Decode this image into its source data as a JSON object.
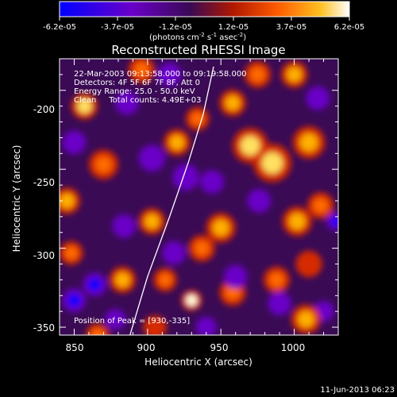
{
  "figure": {
    "title": "Reconstructed RHESSI Image",
    "footer_date": "11-Jun-2013 06:23"
  },
  "colorbar": {
    "tick_labels": [
      "-6.2e-05",
      "-3.7e-05",
      "-1.2e-05",
      "1.2e-05",
      "3.7e-05",
      "6.2e-05"
    ],
    "unit_label": "(photons cm",
    "unit_exp1": "-2",
    "unit_mid": " s",
    "unit_exp2": "-1",
    "unit_end": " asec",
    "unit_exp3": "-2",
    "unit_close": ")",
    "range": [
      -6.2e-05,
      6.2e-05
    ]
  },
  "annotations": {
    "line1": "22-Mar-2003 09:13:58.000 to 09:19:58.000",
    "line2": "Detectors: 4F 5F 6F 7F 8F, Att 0",
    "line3": "Energy Range: 25.0 - 50.0 keV",
    "line4": "Clean     Total counts: 4.49E+03",
    "peak": "Position of Peak = [930,-335]"
  },
  "colors": {
    "background": "#000000",
    "limb": "#ffffff",
    "negative_max": "#0000ff",
    "negative_mid": "#6a00c8",
    "neutral": "#3a0a55",
    "positive_low": "#d62a00",
    "positive_mid": "#ffb000",
    "positive_max": "#ffffe0"
  },
  "chart_data": {
    "type": "heatmap",
    "title": "Reconstructed RHESSI Image",
    "xlabel": "Heliocentric X (arcsec)",
    "ylabel": "Heliocentric Y (arcsec)",
    "xlim": [
      840,
      1030
    ],
    "ylim": [
      -355,
      -180
    ],
    "x_ticks": [
      850,
      900,
      950,
      1000
    ],
    "x_tick_labels": [
      "850",
      "900",
      "950",
      "1000"
    ],
    "y_ticks": [
      -200,
      -250,
      -300,
      -350
    ],
    "y_tick_labels": [
      "-200",
      "-250",
      "-300",
      "-350"
    ],
    "value_range": [
      -6.2e-05,
      6.2e-05
    ],
    "peak_position": [
      930,
      -335
    ],
    "limb_curve": [
      [
        888,
        -355
      ],
      [
        900,
        -318
      ],
      [
        915,
        -280
      ],
      [
        928,
        -245
      ],
      [
        938,
        -215
      ],
      [
        945,
        -185
      ]
    ],
    "blobs": [
      {
        "x": 930,
        "y": -333,
        "v": 6.2e-05,
        "r": 7
      },
      {
        "x": 937,
        "y": -300,
        "v": 2.8e-05,
        "r": 9
      },
      {
        "x": 903,
        "y": -283,
        "v": 4e-05,
        "r": 9
      },
      {
        "x": 950,
        "y": -287,
        "v": 4.2e-05,
        "r": 10
      },
      {
        "x": 970,
        "y": -235,
        "v": 5.3e-05,
        "r": 12
      },
      {
        "x": 985,
        "y": -246,
        "v": 4.6e-05,
        "r": 13
      },
      {
        "x": 1010,
        "y": -233,
        "v": 3.6e-05,
        "r": 11
      },
      {
        "x": 1002,
        "y": -283,
        "v": 3.6e-05,
        "r": 10
      },
      {
        "x": 1018,
        "y": -273,
        "v": 3e-05,
        "r": 9
      },
      {
        "x": 1000,
        "y": -190,
        "v": 3.4e-05,
        "r": 9
      },
      {
        "x": 975,
        "y": -190,
        "v": 2.8e-05,
        "r": 9
      },
      {
        "x": 958,
        "y": -208,
        "v": 3.6e-05,
        "r": 9
      },
      {
        "x": 934,
        "y": -218,
        "v": 3e-05,
        "r": 8
      },
      {
        "x": 920,
        "y": -233,
        "v": 3.5e-05,
        "r": 9
      },
      {
        "x": 896,
        "y": -187,
        "v": 2.8e-05,
        "r": 9
      },
      {
        "x": 857,
        "y": -210,
        "v": 4.8e-05,
        "r": 9
      },
      {
        "x": 870,
        "y": -247,
        "v": 3e-05,
        "r": 10
      },
      {
        "x": 845,
        "y": -270,
        "v": 3.6e-05,
        "r": 9
      },
      {
        "x": 848,
        "y": -303,
        "v": 3e-05,
        "r": 8
      },
      {
        "x": 883,
        "y": -320,
        "v": 3.4e-05,
        "r": 9
      },
      {
        "x": 912,
        "y": -320,
        "v": 2.7e-05,
        "r": 8
      },
      {
        "x": 958,
        "y": -328,
        "v": 2.8e-05,
        "r": 9
      },
      {
        "x": 988,
        "y": -320,
        "v": 3e-05,
        "r": 9
      },
      {
        "x": 1008,
        "y": -345,
        "v": 3.2e-05,
        "r": 10
      },
      {
        "x": 1010,
        "y": -310,
        "v": 2.4e-05,
        "r": 9
      },
      {
        "x": 905,
        "y": -350,
        "v": 2.4e-05,
        "r": 8
      },
      {
        "x": 866,
        "y": -355,
        "v": 2.6e-05,
        "r": 8
      },
      {
        "x": 864,
        "y": -323,
        "v": -6e-05,
        "r": 8
      },
      {
        "x": 850,
        "y": -333,
        "v": -4.8e-05,
        "r": 8
      },
      {
        "x": 903,
        "y": -243,
        "v": -3.8e-05,
        "r": 9
      },
      {
        "x": 926,
        "y": -255,
        "v": -3.4e-05,
        "r": 9
      },
      {
        "x": 944,
        "y": -258,
        "v": -3.6e-05,
        "r": 8
      },
      {
        "x": 918,
        "y": -303,
        "v": -3e-05,
        "r": 8
      },
      {
        "x": 960,
        "y": -318,
        "v": -3.6e-05,
        "r": 8
      },
      {
        "x": 884,
        "y": -286,
        "v": -3.2e-05,
        "r": 8
      },
      {
        "x": 1028,
        "y": -283,
        "v": -4.8e-05,
        "r": 6
      },
      {
        "x": 990,
        "y": -335,
        "v": -3e-05,
        "r": 8
      },
      {
        "x": 886,
        "y": -208,
        "v": -2.8e-05,
        "r": 8
      },
      {
        "x": 915,
        "y": -190,
        "v": -2.6e-05,
        "r": 8
      },
      {
        "x": 976,
        "y": -270,
        "v": -3e-05,
        "r": 8
      },
      {
        "x": 1016,
        "y": -205,
        "v": -2.6e-05,
        "r": 8
      },
      {
        "x": 878,
        "y": -345,
        "v": -3e-05,
        "r": 7
      },
      {
        "x": 1020,
        "y": -340,
        "v": -2.4e-05,
        "r": 7
      },
      {
        "x": 940,
        "y": -350,
        "v": -3.2e-05,
        "r": 7
      },
      {
        "x": 850,
        "y": -233,
        "v": -2.2e-05,
        "r": 8
      }
    ]
  }
}
